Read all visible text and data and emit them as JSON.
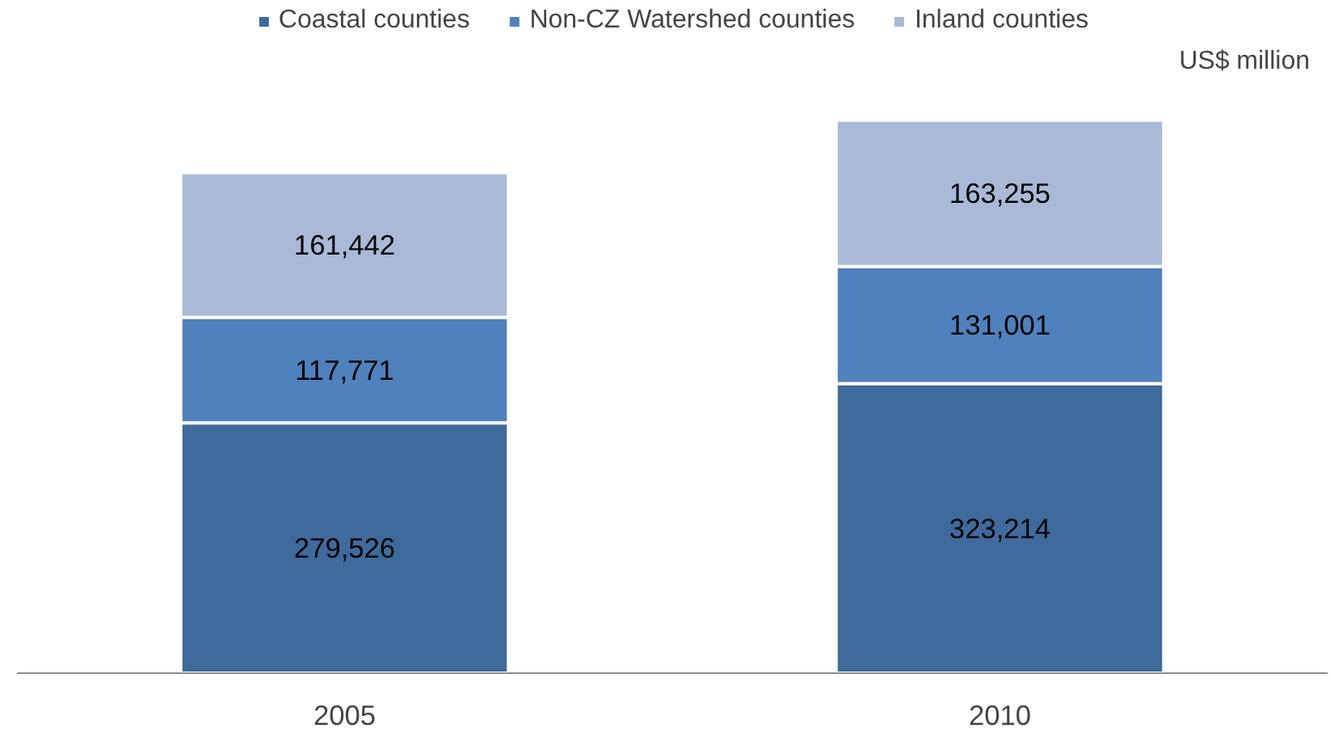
{
  "chart_data": {
    "type": "bar",
    "stacked": true,
    "categories": [
      "2005",
      "2010"
    ],
    "ylabel": "US$ million",
    "legend": "top",
    "grid": false,
    "series": [
      {
        "name": "Coastal counties",
        "color": "#3f6a9c",
        "values": [
          279526,
          323214
        ],
        "value_labels": [
          "279,526",
          "323,214"
        ]
      },
      {
        "name": "Non-CZ Watershed counties",
        "color": "#4f81bd",
        "values": [
          117771,
          131001
        ],
        "value_labels": [
          "117,771",
          "131,001"
        ]
      },
      {
        "name": "Inland counties",
        "color": "#a9b9d7",
        "values": [
          161442,
          163255
        ],
        "value_labels": [
          "161,442",
          "163,255"
        ]
      }
    ]
  }
}
